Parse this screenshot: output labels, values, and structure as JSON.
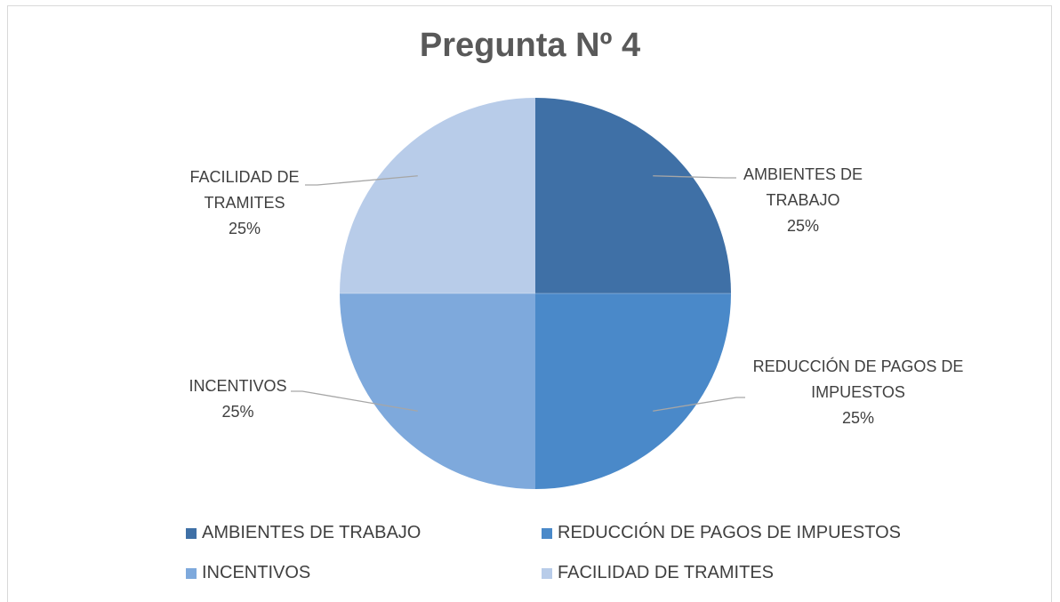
{
  "chart_data": {
    "type": "pie",
    "title": "Pregunta Nº 4",
    "categories": [
      "AMBIENTES DE TRABAJO",
      "REDUCCIÓN DE PAGOS DE IMPUESTOS",
      "INCENTIVOS",
      "FACILIDAD DE TRAMITES"
    ],
    "values": [
      25,
      25,
      25,
      25
    ],
    "value_labels": [
      "25%",
      "25%",
      "25%",
      "25%"
    ],
    "colors": [
      "#3f70a6",
      "#4a89c9",
      "#7ea9dc",
      "#b8cce9"
    ],
    "legend": "bottom"
  }
}
